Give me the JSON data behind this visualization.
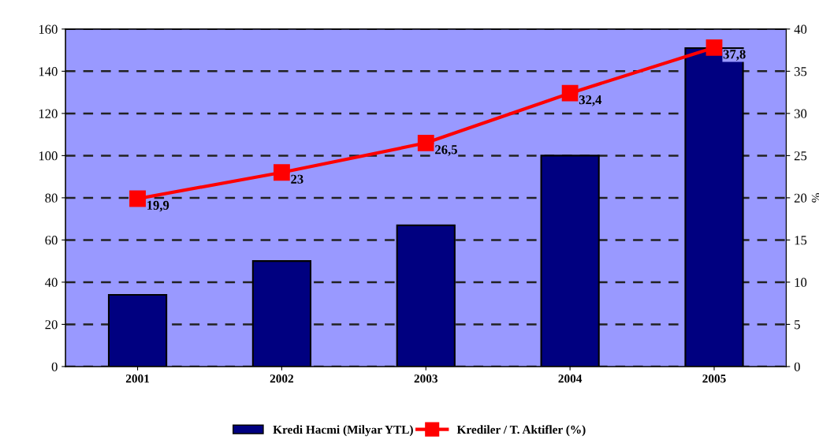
{
  "chart_data": {
    "type": "bar",
    "categories": [
      "2001",
      "2002",
      "2003",
      "2004",
      "2005"
    ],
    "series": [
      {
        "name": "Kredi Hacmi (Milyar YTL)",
        "color": "#000080",
        "values": [
          34,
          50,
          67,
          100,
          151
        ]
      },
      {
        "name": "Krediler / T. Aktifler (%)",
        "type": "line",
        "axis": "y2",
        "color": "#ff0000",
        "values": [
          19.9,
          23,
          26.5,
          32.4,
          37.8
        ],
        "value_labels": [
          "19,9",
          "23",
          "26,5",
          "32,4",
          "37,8"
        ],
        "marker": "square"
      }
    ],
    "y2label": "%",
    "ylim": [
      0,
      160
    ],
    "yticks": [
      0,
      20,
      40,
      60,
      80,
      100,
      120,
      140,
      160
    ],
    "y2lim": [
      0,
      40
    ],
    "y2ticks": [
      0,
      5,
      10,
      15,
      20,
      25,
      30,
      35,
      40
    ],
    "grid": "y",
    "legend": "bottom"
  }
}
